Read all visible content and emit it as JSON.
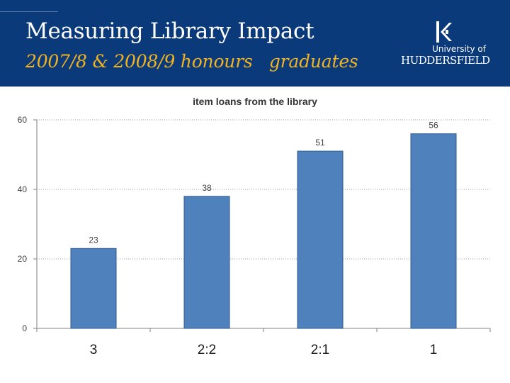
{
  "slide": {
    "title": "Measuring Library Impact",
    "subtitle": "2007/8 & 2008/9 honours   graduates"
  },
  "logo": {
    "line1": "University of",
    "line2": "HUDDERSFIELD",
    "mark_icon": "university-crest-icon"
  },
  "colors": {
    "banner": "#0b3a7a",
    "subtitle": "#f0b323",
    "bar": "#4f81bd"
  },
  "chart_data": {
    "type": "bar",
    "title": "item loans from the library",
    "categories": [
      "3",
      "2:2",
      "2:1",
      "1"
    ],
    "values": [
      23,
      38,
      51,
      56
    ],
    "ylim": [
      0,
      60
    ],
    "yticks": [
      0,
      20,
      40,
      60
    ],
    "xlabel": "",
    "ylabel": "",
    "grid": true,
    "legend": false
  }
}
